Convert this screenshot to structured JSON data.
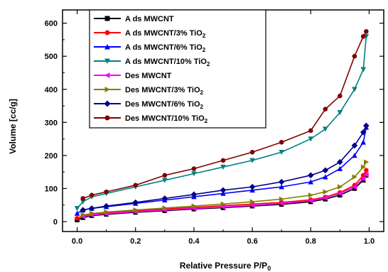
{
  "chart_data": {
    "type": "line",
    "xlabel": "Relative Pressure P/P",
    "xlabel_sub": "0",
    "ylabel": "Volume [cc/g]",
    "xlim": [
      -0.05,
      1.05
    ],
    "ylim": [
      -30,
      640
    ],
    "xticks": [
      0.0,
      0.2,
      0.4,
      0.6,
      0.8,
      1.0
    ],
    "xtick_labels": [
      "0.0",
      "0.2",
      "0.4",
      "0.6",
      "0.8",
      "1.0"
    ],
    "yticks": [
      0,
      100,
      200,
      300,
      400,
      500,
      600
    ],
    "ytick_labels": [
      "0",
      "100",
      "200",
      "300",
      "400",
      "500",
      "600"
    ],
    "grid": false,
    "legend_position": "top-left",
    "series": [
      {
        "name": "A ds MWCNT",
        "name_sub": "",
        "color": "#000000",
        "marker": "square",
        "x": [
          0.0,
          0.02,
          0.05,
          0.1,
          0.2,
          0.3,
          0.4,
          0.5,
          0.6,
          0.7,
          0.8,
          0.85,
          0.9,
          0.95,
          0.98,
          0.99
        ],
        "y": [
          5,
          12,
          18,
          22,
          28,
          33,
          38,
          42,
          47,
          52,
          60,
          68,
          80,
          100,
          125,
          140
        ]
      },
      {
        "name": "A ds MWCNT/3% TiO",
        "name_sub": "2",
        "color": "#ff0000",
        "marker": "circle",
        "x": [
          0.0,
          0.02,
          0.05,
          0.1,
          0.2,
          0.3,
          0.4,
          0.5,
          0.6,
          0.7,
          0.8,
          0.85,
          0.9,
          0.95,
          0.98,
          0.99
        ],
        "y": [
          10,
          18,
          22,
          26,
          32,
          38,
          43,
          48,
          53,
          58,
          66,
          74,
          88,
          110,
          140,
          155
        ]
      },
      {
        "name": "A ds MWCNT/6% TiO",
        "name_sub": "2",
        "color": "#0000ff",
        "marker": "triangle-up",
        "x": [
          0.0,
          0.02,
          0.05,
          0.1,
          0.2,
          0.3,
          0.4,
          0.5,
          0.6,
          0.7,
          0.8,
          0.85,
          0.9,
          0.95,
          0.98,
          0.99
        ],
        "y": [
          25,
          35,
          40,
          45,
          55,
          65,
          75,
          85,
          95,
          105,
          120,
          135,
          160,
          200,
          240,
          285
        ]
      },
      {
        "name": "A ds MWCNT/10% TiO",
        "name_sub": "2",
        "color": "#008080",
        "marker": "triangle-down",
        "x": [
          0.0,
          0.02,
          0.05,
          0.1,
          0.2,
          0.3,
          0.4,
          0.5,
          0.6,
          0.7,
          0.8,
          0.85,
          0.9,
          0.95,
          0.98,
          0.99
        ],
        "y": [
          40,
          60,
          75,
          85,
          105,
          125,
          145,
          165,
          185,
          210,
          250,
          280,
          330,
          400,
          460,
          560
        ]
      },
      {
        "name": "Des MWCNT",
        "name_sub": "",
        "color": "#ff00ff",
        "marker": "triangle-left",
        "x": [
          0.99,
          0.98,
          0.95,
          0.9,
          0.85,
          0.8,
          0.7,
          0.6,
          0.5,
          0.4,
          0.3,
          0.2,
          0.1,
          0.05,
          0.02
        ],
        "y": [
          142,
          130,
          105,
          85,
          72,
          63,
          55,
          49,
          44,
          40,
          35,
          30,
          24,
          20,
          15
        ]
      },
      {
        "name": "Des MWCNT/3% TiO",
        "name_sub": "2",
        "color": "#808000",
        "marker": "triangle-right",
        "x": [
          0.99,
          0.98,
          0.95,
          0.9,
          0.85,
          0.8,
          0.7,
          0.6,
          0.5,
          0.4,
          0.3,
          0.2,
          0.1,
          0.05,
          0.02
        ],
        "y": [
          180,
          165,
          135,
          105,
          90,
          80,
          68,
          60,
          53,
          47,
          41,
          35,
          29,
          24,
          20
        ]
      },
      {
        "name": "Des MWCNT/6% TiO",
        "name_sub": "2",
        "color": "#00008b",
        "marker": "diamond",
        "x": [
          0.99,
          0.98,
          0.95,
          0.9,
          0.85,
          0.8,
          0.7,
          0.6,
          0.5,
          0.4,
          0.3,
          0.2,
          0.1,
          0.05,
          0.02
        ],
        "y": [
          290,
          270,
          230,
          180,
          155,
          140,
          120,
          105,
          95,
          82,
          70,
          58,
          47,
          40,
          35
        ]
      },
      {
        "name": "Des MWCNT/10% TiO",
        "name_sub": "2",
        "color": "#800000",
        "marker": "circle",
        "x": [
          0.99,
          0.98,
          0.95,
          0.9,
          0.85,
          0.8,
          0.7,
          0.6,
          0.5,
          0.4,
          0.3,
          0.2,
          0.1,
          0.05,
          0.02
        ],
        "y": [
          575,
          560,
          500,
          380,
          340,
          275,
          240,
          210,
          185,
          160,
          140,
          110,
          90,
          80,
          70
        ]
      }
    ]
  }
}
